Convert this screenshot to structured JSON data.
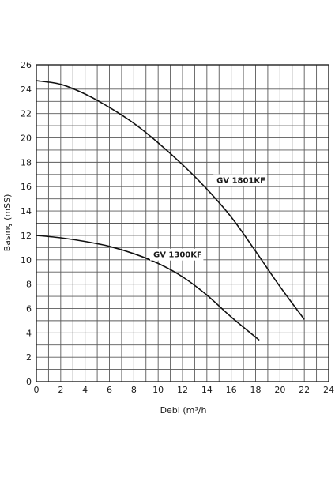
{
  "chart_data": {
    "type": "line",
    "title": "",
    "xlabel": "Debi (m³/h",
    "ylabel": "Basınç (mSS)",
    "xlim": [
      0,
      24
    ],
    "ylim": [
      0,
      26
    ],
    "x_ticks": [
      "0",
      "2",
      "4",
      "6",
      "8",
      "10",
      "12",
      "14",
      "16",
      "18",
      "20",
      "22",
      "24"
    ],
    "y_ticks": [
      "0",
      "2",
      "4",
      "6",
      "8",
      "10",
      "12",
      "14",
      "16",
      "18",
      "20",
      "22",
      "24",
      "26"
    ],
    "grid": true,
    "grid_minor_step_x": 1,
    "grid_minor_step_y": 1,
    "series": [
      {
        "name": "GV 1801KF",
        "color": "#111111",
        "x": [
          0,
          2,
          4,
          6,
          8,
          10,
          12,
          14,
          16,
          18,
          20,
          22
        ],
        "y": [
          24.7,
          24.4,
          23.6,
          22.5,
          21.2,
          19.6,
          17.8,
          15.8,
          13.5,
          10.7,
          7.8,
          5.1
        ]
      },
      {
        "name": "GV 1300KF",
        "color": "#111111",
        "x": [
          0,
          2,
          4,
          6,
          8,
          10,
          12,
          14,
          16,
          18.3
        ],
        "y": [
          12.0,
          11.8,
          11.5,
          11.1,
          10.5,
          9.7,
          8.6,
          7.1,
          5.3,
          3.4
        ]
      }
    ],
    "annotations": [
      {
        "text": "GV 1801KF",
        "x": 14.8,
        "y": 16.3
      },
      {
        "text": "GV 1300KF",
        "x": 9.6,
        "y": 10.2
      }
    ]
  }
}
